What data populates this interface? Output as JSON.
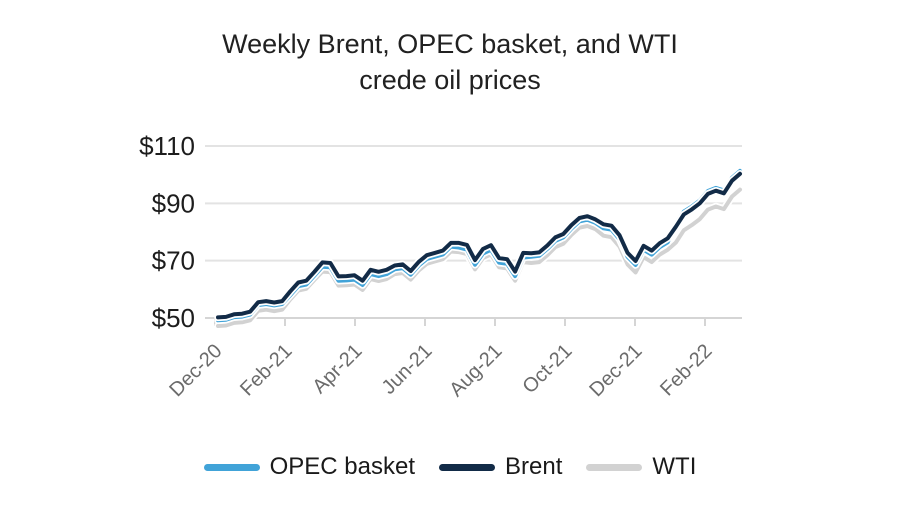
{
  "title": {
    "line1": "Weekly Brent, OPEC basket, and WTI",
    "line2": "crede oil prices"
  },
  "chart_data": {
    "type": "line",
    "title": "Weekly Brent, OPEC basket, and WTI crede oil prices",
    "frequency": "weekly",
    "x_start": "Dec-2020",
    "x_end": "Mar-2022",
    "x_tick_labels": [
      "Dec-20",
      "Feb-21",
      "Apr-21",
      "Jun-21",
      "Aug-21",
      "Oct-21",
      "Dec-21",
      "Feb-22"
    ],
    "y_ticks": [
      110,
      90,
      70,
      50
    ],
    "y_tick_labels": [
      "$110",
      "$90",
      "$70",
      "$50"
    ],
    "ylim": [
      50,
      110
    ],
    "grid": "horizontal",
    "legend_position": "bottom",
    "series": [
      {
        "name": "OPEC basket",
        "color": "#41a3d8",
        "values": [
          49.2,
          49.4,
          50.3,
          50.5,
          51.2,
          54.5,
          54.9,
          54.4,
          54.9,
          58.0,
          61.1,
          61.7,
          64.8,
          67.9,
          67.7,
          63.0,
          63.1,
          63.4,
          61.5,
          65.3,
          64.6,
          65.3,
          67.0,
          67.4,
          65.1,
          68.3,
          70.6,
          71.4,
          72.2,
          74.9,
          74.6,
          73.9,
          68.6,
          72.5,
          73.8,
          69.3,
          68.9,
          64.6,
          71.1,
          71.4,
          71.7,
          74.1,
          76.9,
          78.1,
          81.2,
          83.7,
          84.3,
          83.2,
          81.3,
          80.8,
          77.5,
          71.3,
          68.5,
          73.8,
          72.1,
          74.7,
          76.4,
          82.8,
          87.1,
          88.9,
          91.0,
          94.3,
          95.4,
          94.5,
          98.9,
          101.3
        ]
      },
      {
        "name": "Brent",
        "color": "#122b47",
        "values": [
          50.2,
          50.4,
          51.3,
          51.5,
          52.2,
          55.5,
          55.9,
          55.4,
          55.9,
          59.3,
          62.4,
          63.0,
          66.1,
          69.4,
          69.2,
          64.5,
          64.6,
          64.9,
          63.0,
          66.8,
          66.1,
          66.8,
          68.3,
          68.7,
          66.4,
          69.6,
          71.9,
          72.7,
          73.5,
          76.2,
          76.2,
          75.5,
          70.2,
          74.1,
          75.4,
          70.9,
          70.5,
          66.2,
          72.7,
          72.6,
          72.9,
          75.3,
          78.1,
          79.3,
          82.4,
          84.9,
          85.5,
          84.4,
          82.7,
          82.2,
          78.9,
          72.7,
          69.9,
          75.2,
          73.5,
          76.1,
          77.8,
          81.8,
          86.1,
          87.9,
          90.0,
          93.3,
          94.4,
          93.5,
          97.9,
          100.3
        ]
      },
      {
        "name": "WTI",
        "color": "#d2d2d2",
        "values": [
          47.2,
          47.4,
          48.3,
          48.5,
          49.2,
          52.5,
          52.9,
          52.4,
          52.9,
          56.5,
          59.6,
          60.2,
          63.3,
          66.2,
          66.0,
          61.3,
          61.4,
          61.7,
          59.8,
          63.6,
          62.9,
          63.6,
          65.3,
          65.7,
          63.4,
          66.6,
          68.9,
          69.7,
          70.5,
          73.2,
          73.0,
          72.3,
          67.0,
          70.9,
          72.2,
          67.7,
          67.3,
          63.0,
          69.5,
          69.2,
          69.5,
          71.9,
          74.7,
          75.9,
          79.0,
          81.5,
          82.1,
          81.0,
          78.7,
          78.2,
          74.9,
          68.7,
          65.9,
          71.2,
          69.5,
          72.1,
          73.8,
          76.3,
          80.6,
          82.4,
          84.5,
          87.8,
          88.9,
          88.0,
          92.4,
          94.8
        ]
      }
    ]
  },
  "legend": {
    "items": [
      {
        "label": "OPEC basket",
        "color": "#41a3d8"
      },
      {
        "label": "Brent",
        "color": "#122b47"
      },
      {
        "label": "WTI",
        "color": "#d2d2d2"
      }
    ]
  },
  "colors": {
    "background": "#ffffff",
    "gridline": "#e3e3e3",
    "axis": "#d5d5d5",
    "title_text": "#212121",
    "y_label_text": "#1d1d1d",
    "x_label_text": "#6b6b6b",
    "line_casing": "#ffffff"
  }
}
